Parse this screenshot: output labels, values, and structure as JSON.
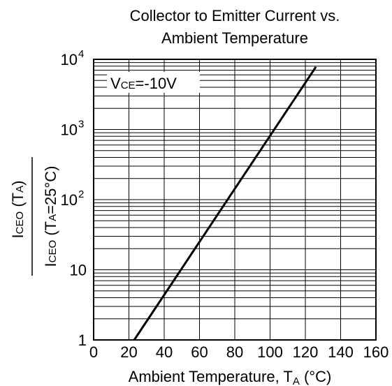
{
  "chart_data": {
    "type": "line",
    "title_line1": "Collector to Emitter Current  vs.",
    "title_line2": "Ambient Temperature",
    "xlabel_main": "Ambient Temperature, T",
    "xlabel_sub": "A",
    "xlabel_unit": " (°C)",
    "ylabel_num_main": "I",
    "ylabel_num_sub": "CEO",
    "ylabel_num_rest1": " (T",
    "ylabel_num_rest_sub": "A",
    "ylabel_num_rest2": ")",
    "ylabel_den_main": "I",
    "ylabel_den_sub": "CEO",
    "ylabel_den_rest1": " (T",
    "ylabel_den_rest_sub": "A",
    "ylabel_den_rest2": "=25°C)",
    "annotation_main": "V",
    "annotation_sub": "CE",
    "annotation_rest": "=-10V",
    "xlim": [
      0,
      160
    ],
    "ylim": [
      1,
      10000
    ],
    "yscale": "log",
    "grid": true,
    "x_ticks": [
      {
        "v": 0,
        "label": "0"
      },
      {
        "v": 20,
        "label": "20"
      },
      {
        "v": 40,
        "label": "40"
      },
      {
        "v": 60,
        "label": "60"
      },
      {
        "v": 80,
        "label": "80"
      },
      {
        "v": 100,
        "label": "100"
      },
      {
        "v": 120,
        "label": "120"
      },
      {
        "v": 140,
        "label": "140"
      },
      {
        "v": 160,
        "label": "160"
      }
    ],
    "y_ticks": [
      {
        "v": 1,
        "base": "1",
        "exp": ""
      },
      {
        "v": 10,
        "base": "10",
        "exp": ""
      },
      {
        "v": 100,
        "base": "10",
        "exp": "2"
      },
      {
        "v": 1000,
        "base": "10",
        "exp": "3"
      },
      {
        "v": 10000,
        "base": "10",
        "exp": "4"
      }
    ],
    "series": [
      {
        "x": [
          23,
          126
        ],
        "y": [
          1,
          7800
        ]
      }
    ]
  }
}
